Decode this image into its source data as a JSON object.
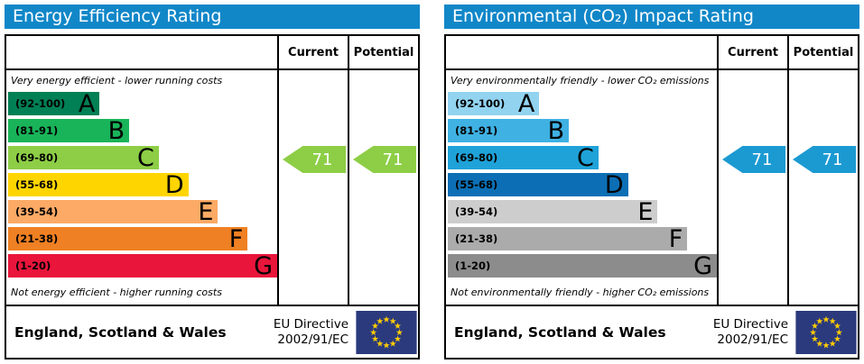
{
  "colors": {
    "title_bar_blue": "#1187c8",
    "eu_flag_blue": "#2b3a7d",
    "eu_star_yellow": "#ffcc00"
  },
  "panels": [
    {
      "title": "Energy Efficiency Rating",
      "columns": {
        "current": "Current",
        "potential": "Potential"
      },
      "top_note": "Very energy efficient - lower running costs",
      "bottom_note": "Not energy efficient - higher running costs",
      "bands": [
        {
          "letter": "A",
          "range": "(92-100)",
          "color": "#008054",
          "width": "34%"
        },
        {
          "letter": "B",
          "range": "(81-91)",
          "color": "#19b459",
          "width": "45%"
        },
        {
          "letter": "C",
          "range": "(69-80)",
          "color": "#8dce46",
          "width": "56%"
        },
        {
          "letter": "D",
          "range": "(55-68)",
          "color": "#ffd500",
          "width": "67%"
        },
        {
          "letter": "E",
          "range": "(39-54)",
          "color": "#fcaa65",
          "width": "78%"
        },
        {
          "letter": "F",
          "range": "(21-38)",
          "color": "#ef8023",
          "width": "89%"
        },
        {
          "letter": "G",
          "range": "(1-20)",
          "color": "#e9153b",
          "width": "100%"
        }
      ],
      "current": {
        "value": "71",
        "color": "#8dce46"
      },
      "potential": {
        "value": "71",
        "color": "#8dce46"
      },
      "footer": {
        "region": "England, Scotland & Wales",
        "directive_line1": "EU Directive",
        "directive_line2": "2002/91/EC"
      }
    },
    {
      "title": "Environmental (CO₂) Impact Rating",
      "columns": {
        "current": "Current",
        "potential": "Potential"
      },
      "top_note": "Very environmentally friendly - lower CO₂ emissions",
      "bottom_note": "Not environmentally friendly - higher CO₂ emissions",
      "bands": [
        {
          "letter": "A",
          "range": "(92-100)",
          "color": "#92d3f0",
          "width": "34%"
        },
        {
          "letter": "B",
          "range": "(81-91)",
          "color": "#3fb1e3",
          "width": "45%"
        },
        {
          "letter": "C",
          "range": "(69-80)",
          "color": "#1fa2d8",
          "width": "56%"
        },
        {
          "letter": "D",
          "range": "(55-68)",
          "color": "#0c6fb5",
          "width": "67%"
        },
        {
          "letter": "E",
          "range": "(39-54)",
          "color": "#cdcdcd",
          "width": "78%"
        },
        {
          "letter": "F",
          "range": "(21-38)",
          "color": "#ababab",
          "width": "89%"
        },
        {
          "letter": "G",
          "range": "(1-20)",
          "color": "#8c8c8c",
          "width": "100%"
        }
      ],
      "current": {
        "value": "71",
        "color": "#1b9ad2"
      },
      "potential": {
        "value": "71",
        "color": "#1b9ad2"
      },
      "footer": {
        "region": "England, Scotland & Wales",
        "directive_line1": "EU Directive",
        "directive_line2": "2002/91/EC"
      }
    }
  ],
  "chart_data": [
    {
      "type": "bar",
      "title": "Energy Efficiency Rating",
      "annotation_top": "Very energy efficient - lower running costs",
      "annotation_bottom": "Not energy efficient - higher running costs",
      "categories": [
        "A (92-100)",
        "B (81-91)",
        "C (69-80)",
        "D (55-68)",
        "E (39-54)",
        "F (21-38)",
        "G (1-20)"
      ],
      "band_colors": [
        "#008054",
        "#19b459",
        "#8dce46",
        "#ffd500",
        "#fcaa65",
        "#ef8023",
        "#e9153b"
      ],
      "series": [
        {
          "name": "Current",
          "values": [
            71
          ],
          "band": "C",
          "color": "#8dce46"
        },
        {
          "name": "Potential",
          "values": [
            71
          ],
          "band": "C",
          "color": "#8dce46"
        }
      ],
      "scale_range": [
        1,
        100
      ],
      "legend_position": "top-right-columns",
      "region": "England, Scotland & Wales",
      "directive": "EU Directive 2002/91/EC"
    },
    {
      "type": "bar",
      "title": "Environmental (CO₂) Impact Rating",
      "annotation_top": "Very environmentally friendly - lower CO₂ emissions",
      "annotation_bottom": "Not environmentally friendly - higher CO₂ emissions",
      "categories": [
        "A (92-100)",
        "B (81-91)",
        "C (69-80)",
        "D (55-68)",
        "E (39-54)",
        "F (21-38)",
        "G (1-20)"
      ],
      "band_colors": [
        "#92d3f0",
        "#3fb1e3",
        "#1fa2d8",
        "#0c6fb5",
        "#cdcdcd",
        "#ababab",
        "#8c8c8c"
      ],
      "series": [
        {
          "name": "Current",
          "values": [
            71
          ],
          "band": "C",
          "color": "#1b9ad2"
        },
        {
          "name": "Potential",
          "values": [
            71
          ],
          "band": "C",
          "color": "#1b9ad2"
        }
      ],
      "scale_range": [
        1,
        100
      ],
      "legend_position": "top-right-columns",
      "region": "England, Scotland & Wales",
      "directive": "EU Directive 2002/91/EC"
    }
  ]
}
